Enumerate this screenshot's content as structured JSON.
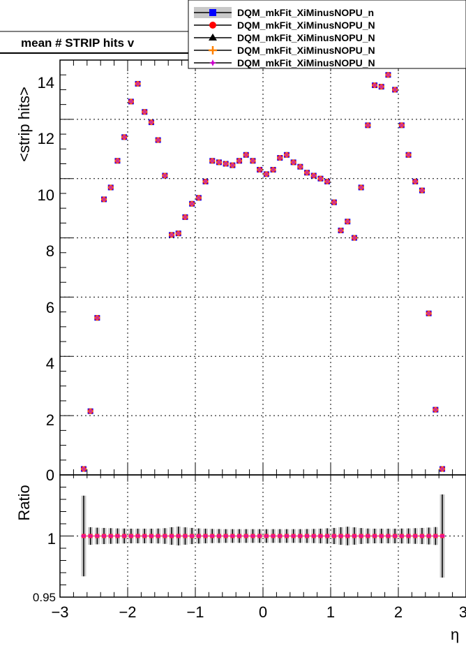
{
  "chart_data": {
    "type": "scatter",
    "title": "mean # STRIP hits v",
    "xlabel": "η",
    "ylabel": "<strip hits>",
    "ratio_ylabel": "Ratio",
    "xlim": [
      -3,
      3
    ],
    "ylim": [
      0,
      14
    ],
    "ratio_ylim": [
      0.95,
      1.05
    ],
    "grid": true,
    "legend_placement": "top-right",
    "x_ticks": [
      "−3",
      "−2",
      "−1",
      "0",
      "1",
      "2",
      "3"
    ],
    "y_ticks": [
      "0",
      "2",
      "4",
      "6",
      "8",
      "10",
      "12",
      "14"
    ],
    "ratio_y_ticks": [
      "0.95",
      "1"
    ],
    "legend": [
      {
        "label": "DQM_mkFit_XiMinusNOPU_n",
        "color": "#0000ff",
        "marker": "square"
      },
      {
        "label": "DQM_mkFit_XiMinusNOPU_N",
        "color": "#ff0000",
        "marker": "circle"
      },
      {
        "label": "DQM_mkFit_XiMinusNOPU_N",
        "color": "#000000",
        "marker": "triangle"
      },
      {
        "label": "DQM_mkFit_XiMinusNOPU_N",
        "color": "#ff8000",
        "marker": "cross"
      },
      {
        "label": "DQM_mkFit_XiMinusNOPU_N",
        "color": "#cc00cc",
        "marker": "star"
      }
    ],
    "x": [
      -2.65,
      -2.55,
      -2.45,
      -2.35,
      -2.25,
      -2.15,
      -2.05,
      -1.95,
      -1.85,
      -1.75,
      -1.65,
      -1.55,
      -1.45,
      -1.35,
      -1.25,
      -1.15,
      -1.05,
      -0.95,
      -0.85,
      -0.75,
      -0.65,
      -0.55,
      -0.45,
      -0.35,
      -0.25,
      -0.15,
      -0.05,
      0.05,
      0.15,
      0.25,
      0.35,
      0.45,
      0.55,
      0.65,
      0.75,
      0.85,
      0.95,
      1.05,
      1.15,
      1.25,
      1.35,
      1.45,
      1.55,
      1.65,
      1.75,
      1.85,
      1.95,
      2.05,
      2.15,
      2.25,
      2.35,
      2.45,
      2.55,
      2.65
    ],
    "y": [
      0.2,
      2.15,
      5.3,
      9.3,
      9.7,
      10.6,
      11.4,
      12.6,
      13.2,
      12.25,
      11.9,
      11.3,
      10.1,
      8.1,
      8.15,
      8.7,
      9.15,
      9.35,
      9.9,
      10.6,
      10.55,
      10.5,
      10.45,
      10.6,
      10.8,
      10.6,
      10.3,
      10.15,
      10.3,
      10.7,
      10.8,
      10.55,
      10.4,
      10.2,
      10.1,
      10.0,
      9.9,
      9.2,
      8.25,
      8.55,
      8.0,
      9.7,
      11.8,
      13.15,
      13.1,
      13.5,
      13.0,
      11.8,
      10.8,
      9.9,
      9.6,
      5.45,
      2.2,
      0.2
    ],
    "ratio": {
      "values": [
        1.0,
        1.0,
        1.0,
        1.0,
        1.0,
        1.0,
        1.0,
        1.0,
        1.0,
        1.0,
        1.0,
        1.0,
        1.0,
        1.0,
        1.0,
        1.0,
        1.0,
        1.0,
        1.0,
        1.0,
        1.0,
        1.0,
        1.0,
        1.0,
        1.0,
        1.0,
        1.0,
        1.0,
        1.0,
        1.0,
        1.0,
        1.0,
        1.0,
        1.0,
        1.0,
        1.0,
        1.0,
        1.0,
        1.0,
        1.0,
        1.0,
        1.0,
        1.0,
        1.0,
        1.0,
        1.0,
        1.0,
        1.0,
        1.0,
        1.0,
        1.0,
        1.0,
        1.0,
        1.0
      ],
      "errors": [
        0.033,
        0.0072,
        0.0068,
        0.0066,
        0.0064,
        0.0062,
        0.0061,
        0.006,
        0.006,
        0.006,
        0.006,
        0.0061,
        0.0064,
        0.0072,
        0.0077,
        0.0071,
        0.0066,
        0.0062,
        0.006,
        0.0058,
        0.0057,
        0.0056,
        0.0056,
        0.0056,
        0.0056,
        0.0056,
        0.0056,
        0.0056,
        0.0056,
        0.0056,
        0.0056,
        0.0056,
        0.0056,
        0.0057,
        0.0058,
        0.006,
        0.0063,
        0.0066,
        0.0072,
        0.0076,
        0.0071,
        0.0065,
        0.0061,
        0.006,
        0.006,
        0.006,
        0.006,
        0.0061,
        0.0062,
        0.0064,
        0.0066,
        0.0069,
        0.0073,
        0.034
      ]
    }
  }
}
